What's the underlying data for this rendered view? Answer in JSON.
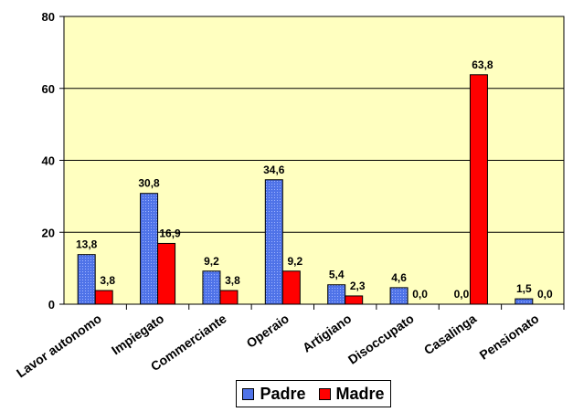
{
  "chart_data": {
    "type": "bar",
    "title": "",
    "xlabel": "",
    "ylabel": "",
    "categories": [
      "Lavor autonomo",
      "Impiegato",
      "Commerciante",
      "Operaio",
      "Artigiano",
      "Disoccupato",
      "Casalinga",
      "Pensionato"
    ],
    "series": [
      {
        "name": "Padre",
        "values": [
          13.8,
          30.8,
          9.2,
          34.6,
          5.4,
          4.6,
          0.0,
          1.5
        ],
        "labels": [
          "13,8",
          "30,8",
          "9,2",
          "34,6",
          "5,4",
          "4,6",
          "0,0",
          "1,5"
        ],
        "color": "#4f73e8"
      },
      {
        "name": "Madre",
        "values": [
          3.8,
          16.9,
          3.8,
          9.2,
          2.3,
          0.0,
          63.8,
          0.0
        ],
        "labels": [
          "3,8",
          "16,9",
          "3,8",
          "9,2",
          "2,3",
          "0,0",
          "63,8",
          "0,0"
        ],
        "color": "#ff0000"
      }
    ],
    "ylim": [
      0,
      80
    ],
    "yticks": [
      0,
      20,
      40,
      60,
      80
    ],
    "grid": true,
    "plot_background": "#ffffc0",
    "legend_position": "bottom"
  }
}
